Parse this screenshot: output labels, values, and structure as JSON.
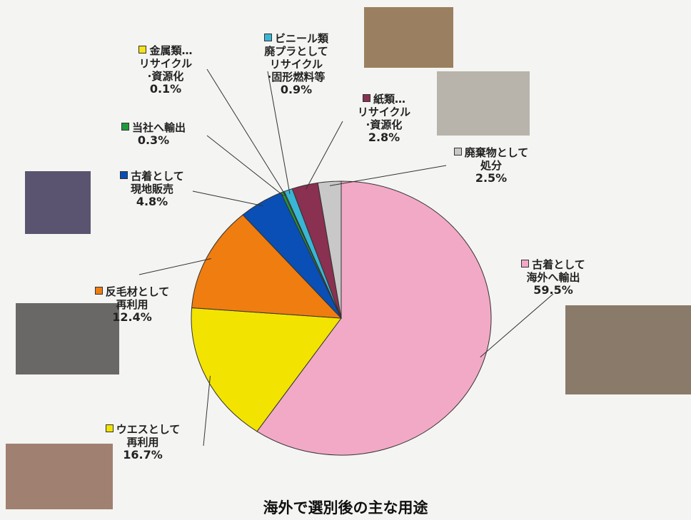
{
  "chart_data": {
    "type": "pie",
    "title": "海外で選別後の主な用途",
    "categories": [
      "古着として\n海外へ輸出",
      "ウエスとして\n再利用",
      "反毛材として\n再利用",
      "古着として\n現地販売",
      "当社へ輸出",
      "金属類…\nリサイクル\n·資源化",
      "ビニール類\n廃プラとして\nリサイクル\n·固形燃料等",
      "紙類…\nリサイクル\n·資源化",
      "廃棄物として\n処分"
    ],
    "values": [
      59.5,
      16.7,
      12.4,
      4.8,
      0.3,
      0.1,
      0.9,
      2.8,
      2.5
    ],
    "value_labels": [
      "59.5%",
      "16.7%",
      "12.4%",
      "4.8%",
      "0.3%",
      "0.1%",
      "0.9%",
      "2.8%",
      "2.5%"
    ],
    "colors": [
      "#f2a9c6",
      "#f2e400",
      "#ef7d10",
      "#0a4fb5",
      "#1f9a3a",
      "#f5e21a",
      "#39b6d6",
      "#8a3050",
      "#c8c8c8"
    ]
  }
}
